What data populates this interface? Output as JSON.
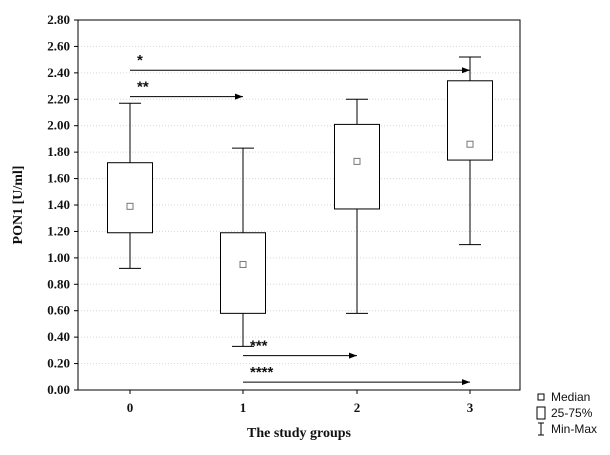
{
  "chart_data": {
    "type": "box",
    "xlabel": "The study groups",
    "ylabel": "PON1 [U/ml]",
    "ylim": [
      0,
      2.8
    ],
    "yticks": [
      "0.00",
      "0.20",
      "0.40",
      "0.60",
      "0.80",
      "1.00",
      "1.20",
      "1.40",
      "1.60",
      "1.80",
      "2.00",
      "2.20",
      "2.40",
      "2.60",
      "2.80"
    ],
    "categories": [
      "0",
      "1",
      "2",
      "3"
    ],
    "boxes": [
      {
        "category": "0",
        "min": 0.92,
        "q1": 1.19,
        "median": 1.39,
        "q3": 1.72,
        "max": 2.17
      },
      {
        "category": "1",
        "min": 0.33,
        "q1": 0.58,
        "median": 0.95,
        "q3": 1.19,
        "max": 1.83
      },
      {
        "category": "2",
        "min": 0.58,
        "q1": 1.37,
        "median": 1.73,
        "q3": 2.01,
        "max": 2.2
      },
      {
        "category": "3",
        "min": 1.1,
        "q1": 1.74,
        "median": 1.86,
        "q3": 2.34,
        "max": 2.52
      }
    ],
    "significance": [
      {
        "label": "*",
        "from": "0",
        "to": "3",
        "y": 2.42
      },
      {
        "label": "**",
        "from": "0",
        "to": "1",
        "y": 2.22
      },
      {
        "label": "***",
        "from": "1",
        "to": "2",
        "y": 0.26
      },
      {
        "label": "****",
        "from": "1",
        "to": "3",
        "y": 0.06
      }
    ],
    "legend": {
      "position": "bottom-right",
      "items": [
        {
          "symbol": "median-square",
          "label": "Median"
        },
        {
          "symbol": "box",
          "label": "25-75%"
        },
        {
          "symbol": "whisker",
          "label": "Min-Max"
        }
      ]
    },
    "grid": true
  }
}
